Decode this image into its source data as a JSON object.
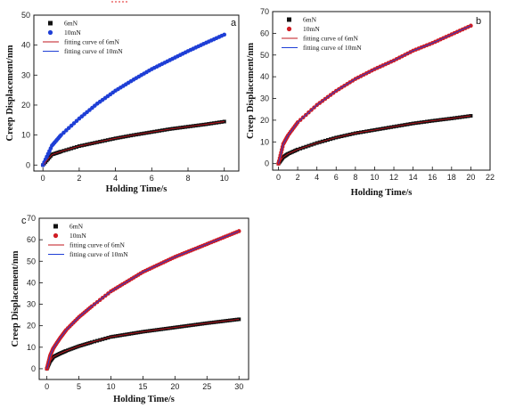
{
  "chart_data": [
    {
      "type": "scatter",
      "panel_label": "a",
      "xlabel": "Holding Time/s",
      "ylabel": "Creep Displacement/nm",
      "xlim": [
        -0.5,
        10.8
      ],
      "ylim": [
        -2,
        50
      ],
      "xticks": [
        0,
        2,
        4,
        6,
        8,
        10
      ],
      "yticks": [
        0,
        10,
        20,
        30,
        40,
        50
      ],
      "legend_position": "top-left",
      "legend": [
        "6mN",
        "10mN",
        "fitting curve of 6mN",
        "fitting curve of 10mN"
      ],
      "series": [
        {
          "name": "6mN",
          "kind": "points",
          "marker": "square",
          "color": "#111111",
          "x": [
            0,
            0.5,
            1,
            2,
            3,
            4,
            5,
            6,
            7,
            8,
            9,
            10
          ],
          "y": [
            0,
            3.5,
            4.5,
            6.3,
            7.6,
            8.9,
            10.0,
            11.0,
            12.0,
            12.8,
            13.6,
            14.5
          ]
        },
        {
          "name": "10mN",
          "kind": "points",
          "marker": "circle",
          "color": "#1f3fd6",
          "x": [
            0,
            0.5,
            1,
            2,
            3,
            4,
            5,
            6,
            7,
            8,
            9,
            10
          ],
          "y": [
            0,
            6.5,
            10.0,
            15.5,
            20.5,
            24.8,
            28.5,
            32.0,
            35.0,
            38.0,
            40.8,
            43.5
          ]
        },
        {
          "name": "fitting curve of 6mN",
          "kind": "line",
          "color": "#c0141e",
          "x": [
            0,
            0.5,
            1,
            2,
            3,
            4,
            5,
            6,
            7,
            8,
            9,
            10
          ],
          "y": [
            0,
            3.5,
            4.5,
            6.3,
            7.6,
            8.9,
            10.0,
            11.0,
            12.0,
            12.8,
            13.6,
            14.5
          ]
        },
        {
          "name": "fitting curve of 10mN",
          "kind": "line",
          "color": "#1f3fd6",
          "x": [
            0,
            0.5,
            1,
            2,
            3,
            4,
            5,
            6,
            7,
            8,
            9,
            10
          ],
          "y": [
            0,
            6.5,
            10.0,
            15.5,
            20.5,
            24.8,
            28.5,
            32.0,
            35.0,
            38.0,
            40.8,
            43.5
          ]
        }
      ]
    },
    {
      "type": "scatter",
      "panel_label": "b",
      "xlabel": "Holding Time/s",
      "ylabel": "Creep Displacement/nm",
      "xlim": [
        -0.6,
        22
      ],
      "ylim": [
        -3,
        70
      ],
      "xticks": [
        0,
        2,
        4,
        6,
        8,
        10,
        12,
        14,
        16,
        18,
        20,
        22
      ],
      "yticks": [
        0,
        10,
        20,
        30,
        40,
        50,
        60,
        70
      ],
      "legend_position": "top-left",
      "legend": [
        "6mN",
        "10mN",
        "fitting curve of 6mN",
        "fitting curve of 10mN"
      ],
      "series": [
        {
          "name": "6mN",
          "kind": "points",
          "marker": "square",
          "color": "#111111",
          "x": [
            0,
            0.5,
            1,
            2,
            4,
            6,
            8,
            10,
            12,
            14,
            16,
            18,
            20
          ],
          "y": [
            0,
            3,
            4.5,
            6.5,
            9.5,
            12,
            14,
            15.5,
            17,
            18.5,
            19.7,
            20.8,
            22
          ]
        },
        {
          "name": "10mN",
          "kind": "points",
          "marker": "circle",
          "color": "#d01c24",
          "x": [
            0,
            0.5,
            1,
            2,
            4,
            6,
            8,
            10,
            12,
            14,
            16,
            18,
            20
          ],
          "y": [
            0,
            9,
            13,
            19,
            27,
            33.5,
            39,
            43.5,
            47.5,
            52,
            55.5,
            59.5,
            63.5
          ]
        },
        {
          "name": "fitting curve of 6mN",
          "kind": "line",
          "color": "#c0141e",
          "x": [
            0,
            0.5,
            1,
            2,
            4,
            6,
            8,
            10,
            12,
            14,
            16,
            18,
            20
          ],
          "y": [
            0,
            3,
            4.5,
            6.5,
            9.5,
            12,
            14,
            15.5,
            17,
            18.5,
            19.7,
            20.8,
            22
          ]
        },
        {
          "name": "fitting curve of 10mN",
          "kind": "line",
          "color": "#1f3fd6",
          "x": [
            0,
            0.5,
            1,
            2,
            4,
            6,
            8,
            10,
            12,
            14,
            16,
            18,
            20
          ],
          "y": [
            0,
            9,
            13,
            19,
            27,
            33.5,
            39,
            43.5,
            47.5,
            52,
            55.5,
            59.5,
            63.5
          ]
        }
      ]
    },
    {
      "type": "scatter",
      "panel_label": "c",
      "xlabel": "Holding Time/s",
      "ylabel": "Creep Displacement/nm",
      "xlim": [
        -1.2,
        31.5
      ],
      "ylim": [
        -5,
        70
      ],
      "xticks": [
        0,
        5,
        10,
        15,
        20,
        25,
        30
      ],
      "yticks": [
        0,
        10,
        20,
        30,
        40,
        50,
        60,
        70
      ],
      "legend_position": "top-left",
      "legend": [
        "6mN",
        "10mN",
        "fitting curve of 6mN",
        "fitting curve of 10mN"
      ],
      "series": [
        {
          "name": "6mN",
          "kind": "points",
          "marker": "square",
          "color": "#111111",
          "x": [
            0,
            0.5,
            1,
            2,
            3,
            5,
            7,
            10,
            12.5,
            15,
            17.5,
            20,
            22.5,
            25,
            27.5,
            30
          ],
          "y": [
            0,
            3.5,
            5.5,
            7,
            8.3,
            10.5,
            12.3,
            14.8,
            16,
            17.2,
            18.2,
            19.2,
            20.2,
            21.2,
            22.1,
            23
          ]
        },
        {
          "name": "10mN",
          "kind": "points",
          "marker": "circle",
          "color": "#d01c24",
          "x": [
            0,
            0.5,
            1,
            2,
            3,
            5,
            7,
            10,
            12.5,
            15,
            17.5,
            20,
            22.5,
            25,
            27.5,
            30
          ],
          "y": [
            0,
            6,
            9.5,
            14,
            18,
            24,
            29,
            36,
            40.5,
            45,
            48.5,
            52,
            55,
            58,
            61,
            64
          ]
        },
        {
          "name": "fitting curve of 6mN",
          "kind": "line",
          "color": "#c0141e",
          "x": [
            0,
            0.5,
            1,
            2,
            3,
            5,
            7,
            10,
            12.5,
            15,
            17.5,
            20,
            22.5,
            25,
            27.5,
            30
          ],
          "y": [
            0,
            3.5,
            5.5,
            7,
            8.3,
            10.5,
            12.3,
            14.8,
            16,
            17.2,
            18.2,
            19.2,
            20.2,
            21.2,
            22.1,
            23
          ]
        },
        {
          "name": "fitting curve of 10mN",
          "kind": "line",
          "color": "#1f3fd6",
          "x": [
            0,
            0.5,
            1,
            2,
            3,
            5,
            7,
            10,
            12.5,
            15,
            17.5,
            20,
            22.5,
            25,
            27.5,
            30
          ],
          "y": [
            0,
            6,
            9.5,
            14,
            18,
            24,
            29,
            36,
            40.5,
            45,
            48.5,
            52,
            55,
            58,
            61,
            64
          ]
        }
      ]
    }
  ]
}
